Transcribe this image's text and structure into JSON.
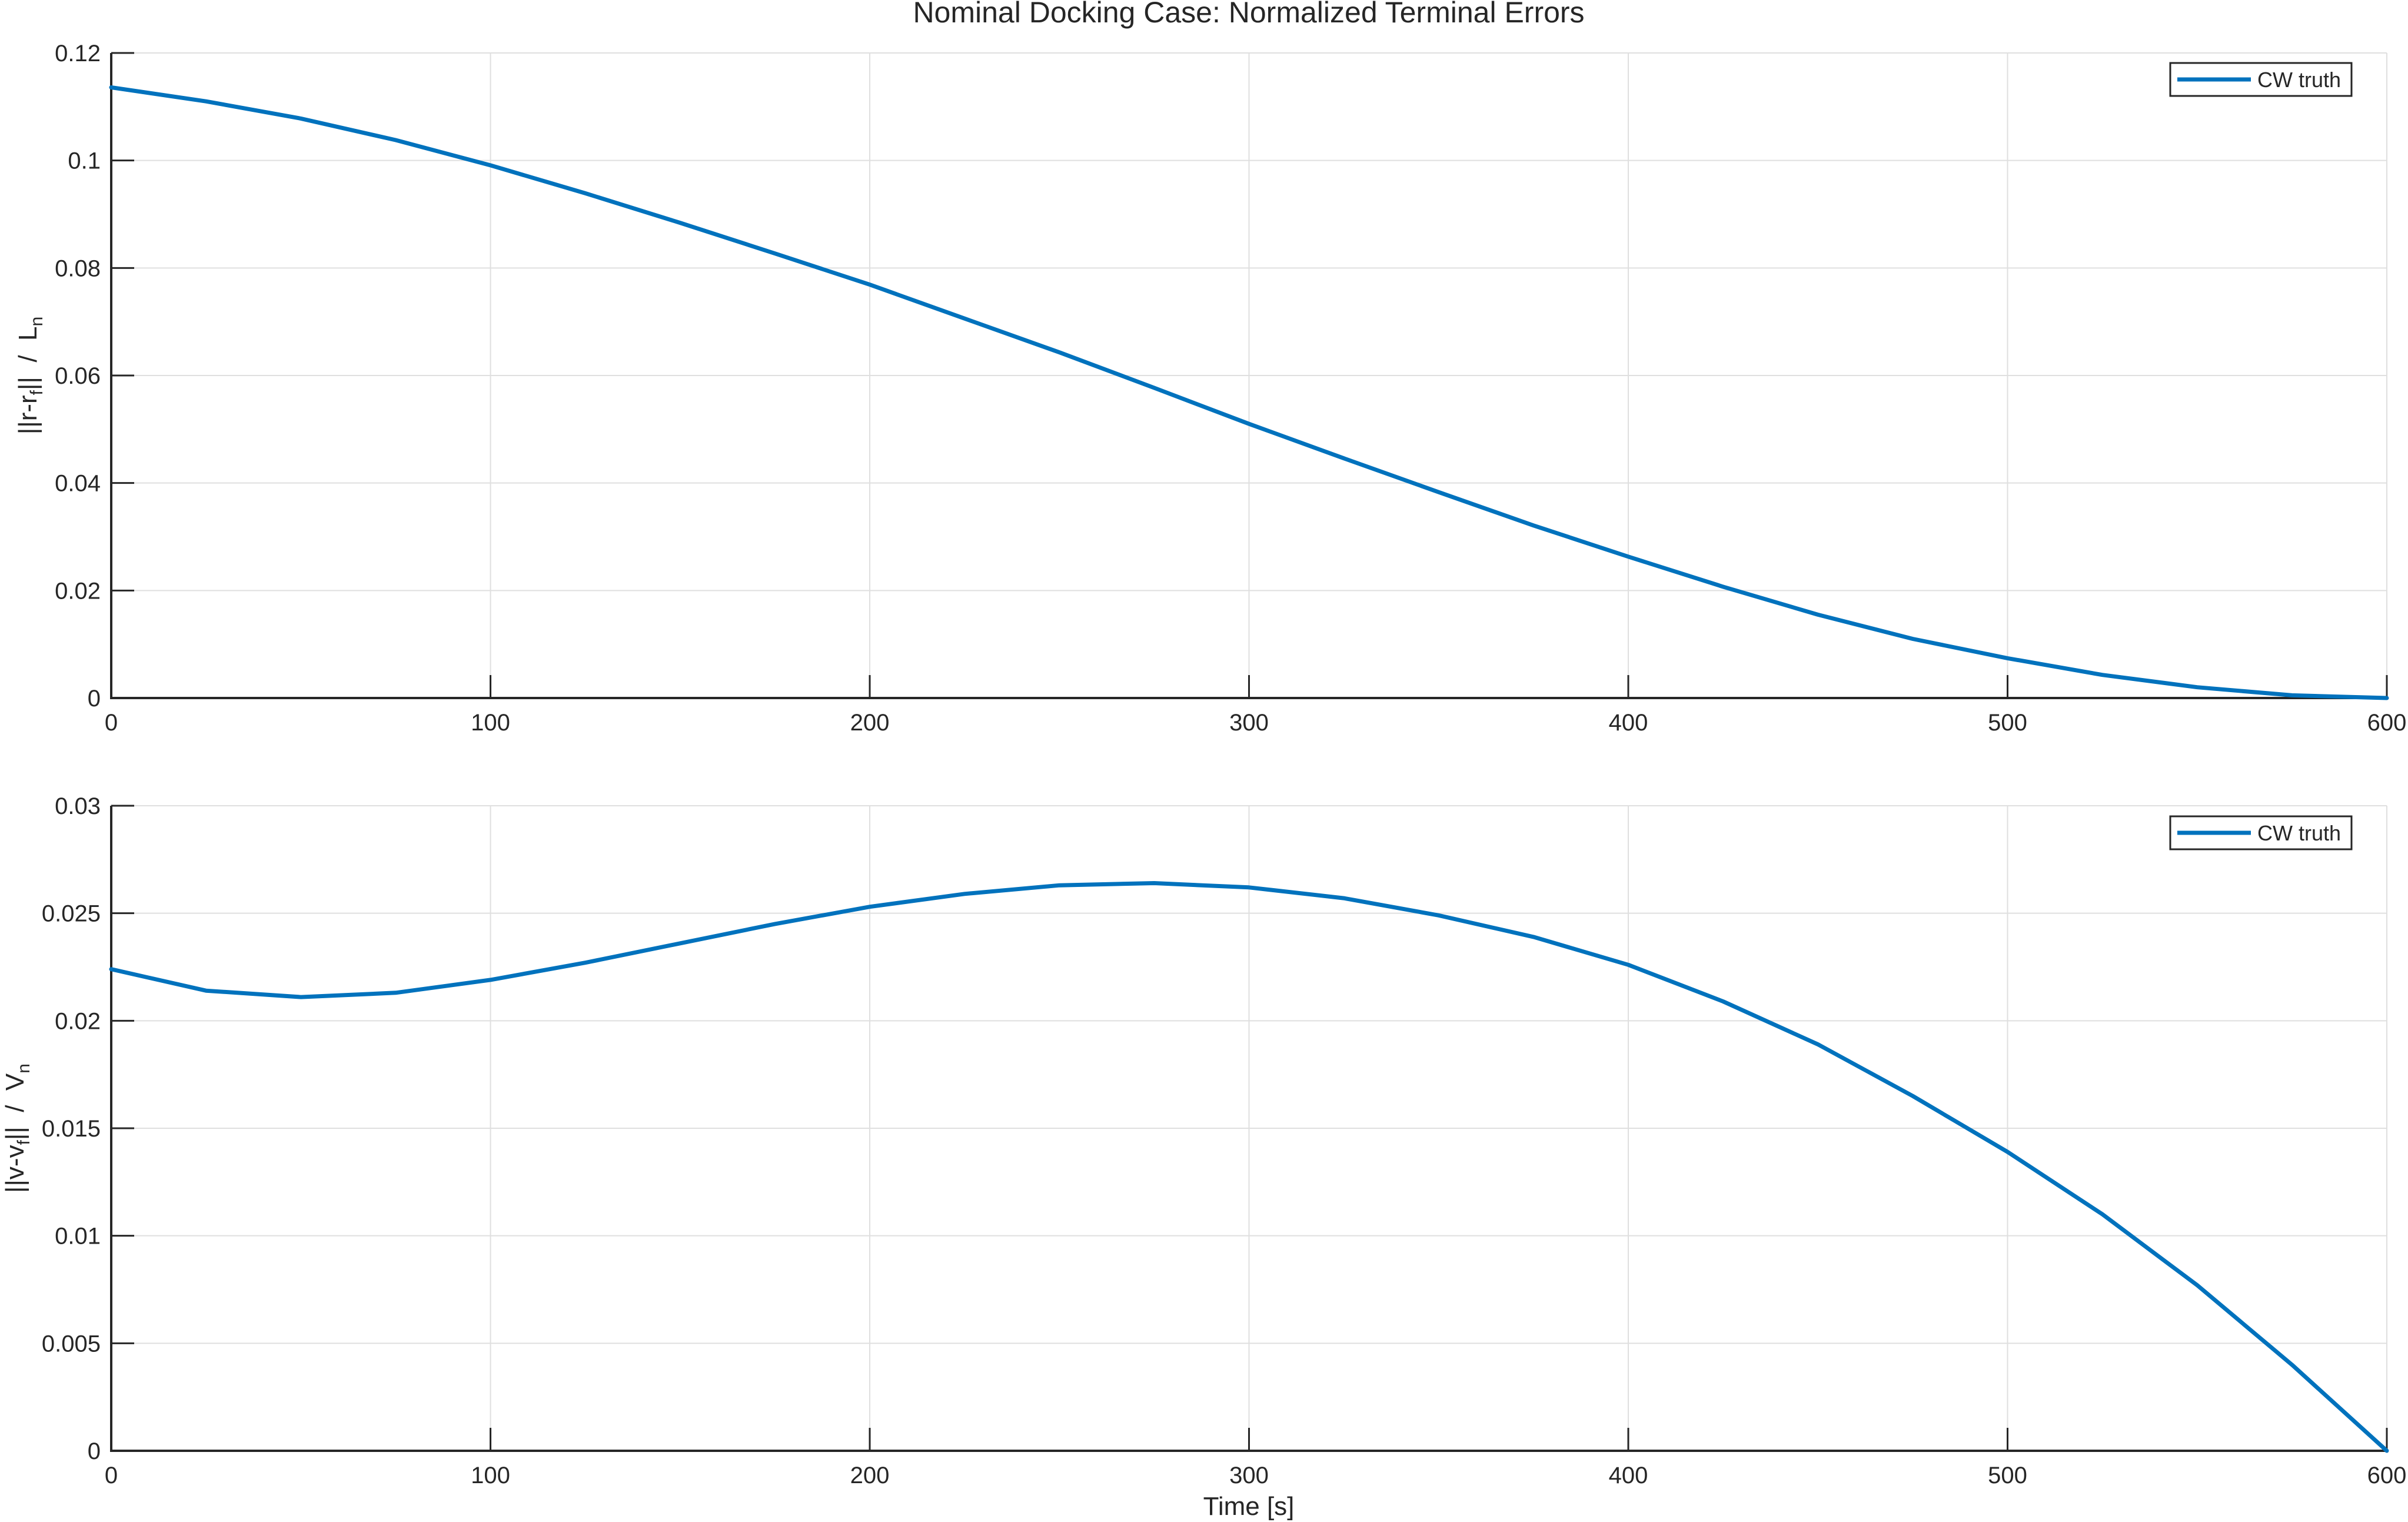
{
  "figure": {
    "title": "Nominal Docking Case: Normalized Terminal Errors",
    "xlabel": "Time [s]"
  },
  "colors": {
    "series": "#0072bd",
    "axis": "#262626",
    "grid": "#dfdfdf"
  },
  "chart_data": [
    {
      "type": "line",
      "title": "Nominal Docking Case: Normalized Terminal Errors",
      "xlabel": "",
      "ylabel": "||r-r_f||  /  L_n",
      "xlim": [
        0,
        600
      ],
      "ylim": [
        0,
        0.12
      ],
      "grid": true,
      "legend_position": "northeast",
      "x_ticks": [
        "0",
        "100",
        "200",
        "300",
        "400",
        "500",
        "600"
      ],
      "y_ticks": [
        "0",
        "0.02",
        "0.04",
        "0.06",
        "0.08",
        "0.1",
        "0.12"
      ],
      "x": [
        0,
        25,
        50,
        75,
        100,
        125,
        150,
        175,
        200,
        225,
        250,
        275,
        300,
        325,
        350,
        375,
        400,
        425,
        450,
        475,
        500,
        525,
        550,
        575,
        600
      ],
      "series": [
        {
          "name": "CW truth",
          "values": [
            0.1136,
            0.111,
            0.1078,
            0.1038,
            0.0991,
            0.0939,
            0.0884,
            0.0827,
            0.0769,
            0.0706,
            0.0643,
            0.0577,
            0.051,
            0.0446,
            0.0383,
            0.0321,
            0.0263,
            0.0207,
            0.0155,
            0.011,
            0.0074,
            0.0043,
            0.002,
            0.0005,
            0.0
          ]
        }
      ]
    },
    {
      "type": "line",
      "title": "",
      "xlabel": "Time [s]",
      "ylabel": "||v-v_f||  /  V_n",
      "xlim": [
        0,
        600
      ],
      "ylim": [
        0,
        0.03
      ],
      "grid": true,
      "legend_position": "northeast",
      "x_ticks": [
        "0",
        "100",
        "200",
        "300",
        "400",
        "500",
        "600"
      ],
      "y_ticks": [
        "0",
        "0.005",
        "0.01",
        "0.015",
        "0.02",
        "0.025",
        "0.03"
      ],
      "x": [
        0,
        25,
        50,
        75,
        100,
        125,
        150,
        175,
        200,
        225,
        250,
        275,
        300,
        325,
        350,
        375,
        400,
        425,
        450,
        475,
        500,
        525,
        550,
        575,
        600
      ],
      "series": [
        {
          "name": "CW truth",
          "values": [
            0.0224,
            0.0214,
            0.0211,
            0.0213,
            0.0219,
            0.0227,
            0.0236,
            0.0245,
            0.0253,
            0.0259,
            0.0263,
            0.0264,
            0.0262,
            0.0257,
            0.0249,
            0.0239,
            0.0226,
            0.0209,
            0.0189,
            0.0165,
            0.0139,
            0.011,
            0.0077,
            0.004,
            0.0
          ]
        }
      ]
    }
  ],
  "plots": [
    {
      "ylabel_main": "||r-r",
      "ylabel_sub": "f",
      "ylabel_tail": "||  /  L",
      "ylabel_sub2": "n",
      "legend_label": "CW truth"
    },
    {
      "ylabel_main": "||v-v",
      "ylabel_sub": "f",
      "ylabel_tail": "||  /  V",
      "ylabel_sub2": "n",
      "legend_label": "CW truth"
    }
  ]
}
